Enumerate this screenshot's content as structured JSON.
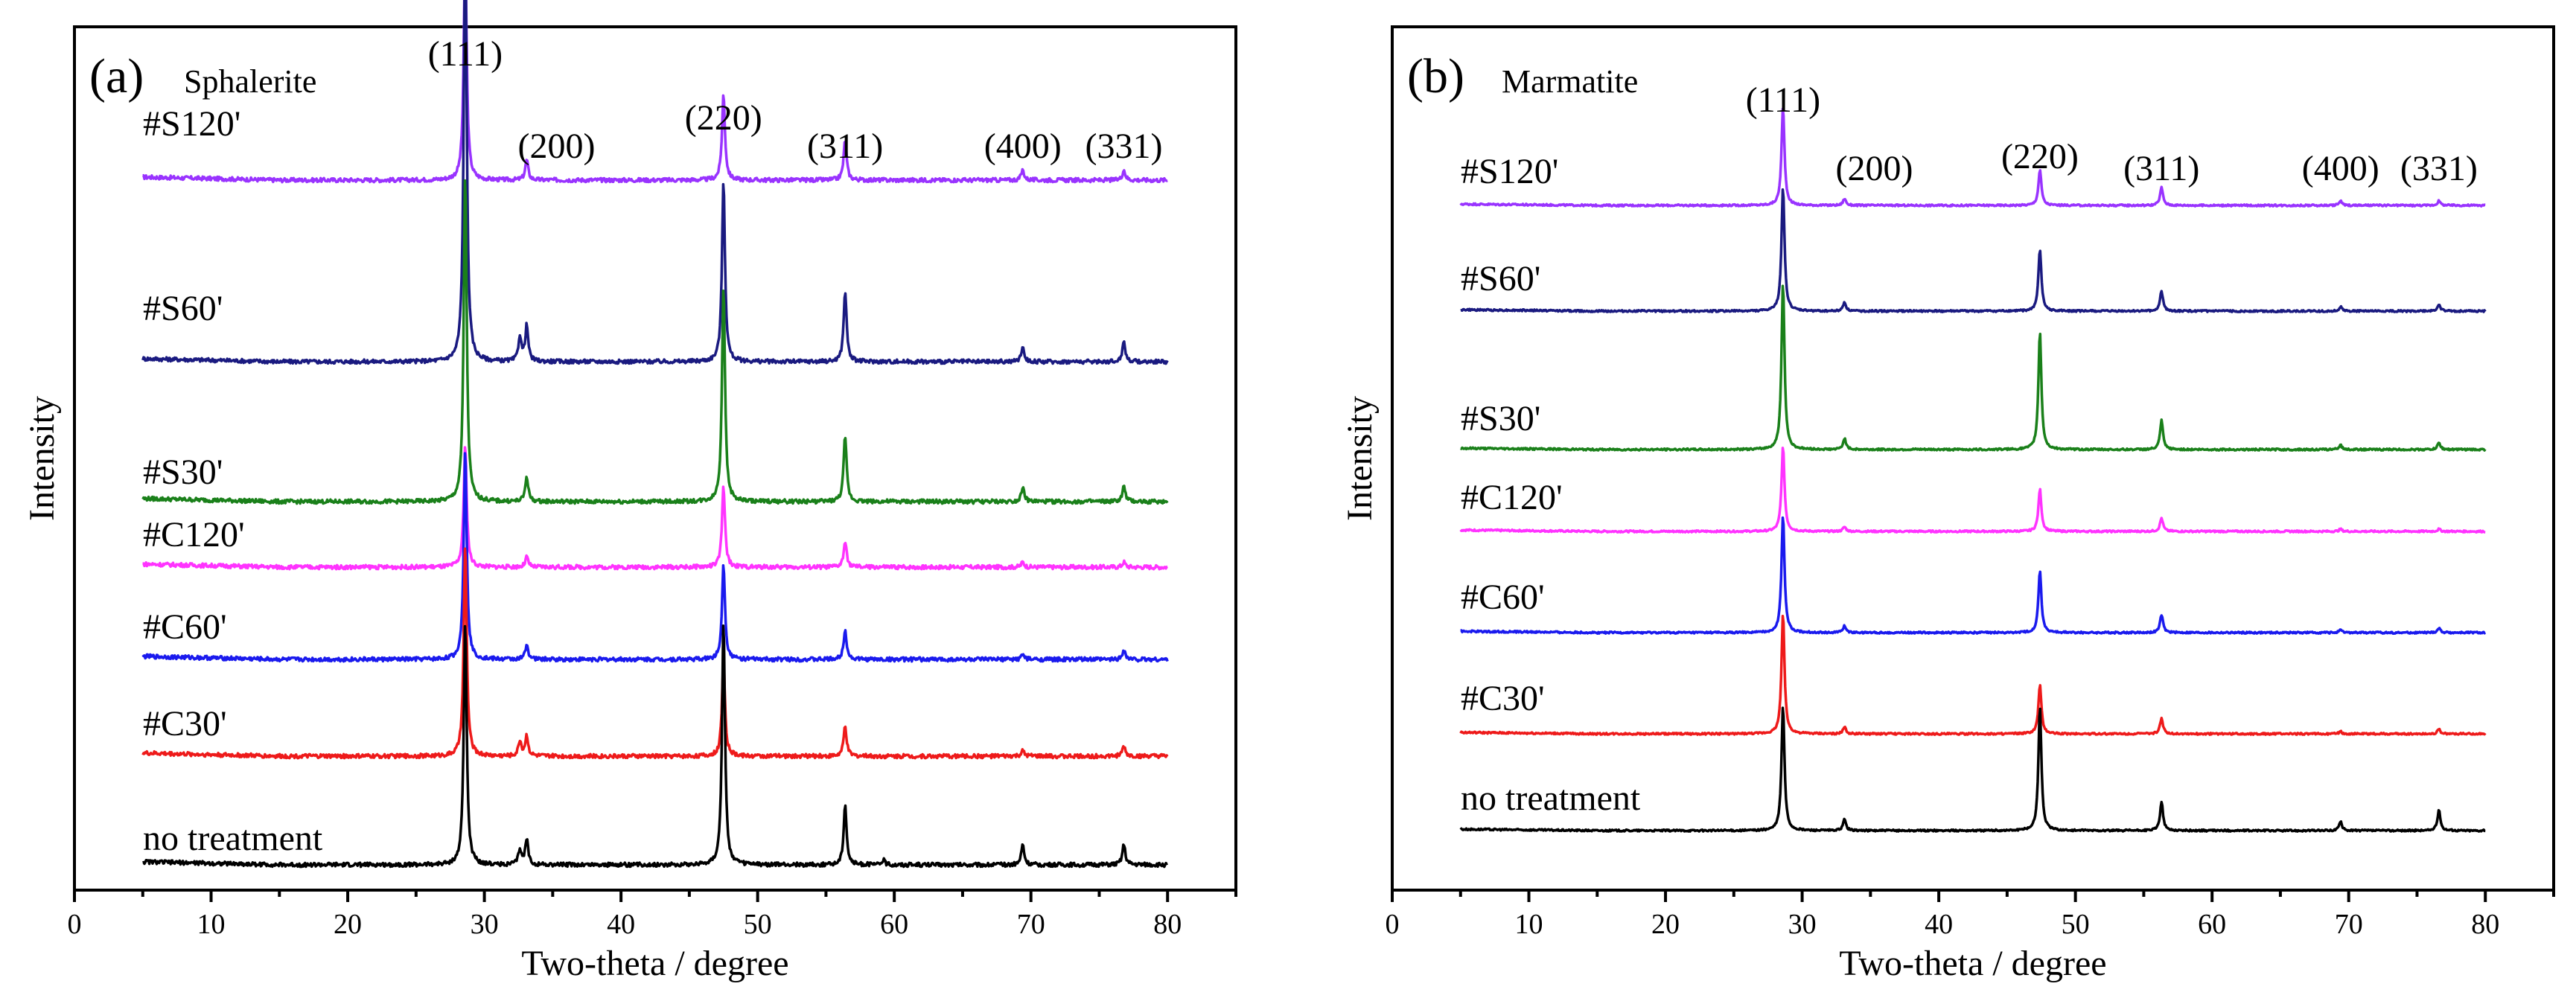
{
  "chart_data": [
    {
      "type": "line",
      "panel_label": "(a)",
      "title": "Sphalerite",
      "xlabel": "Two-theta / degree",
      "ylabel": "Intensity",
      "xlim": [
        0,
        85
      ],
      "xticks": [
        0,
        10,
        20,
        30,
        40,
        50,
        60,
        70,
        80
      ],
      "x_range_measured": [
        5,
        80
      ],
      "peak_labels": [
        {
          "text": "(111)",
          "x": 28.6
        },
        {
          "text": "(200)",
          "x": 33.1
        },
        {
          "text": "(220)",
          "x": 47.5
        },
        {
          "text": "(311)",
          "x": 56.4
        },
        {
          "text": "(400)",
          "x": 69.4
        },
        {
          "text": "(331)",
          "x": 76.8
        }
      ],
      "series": [
        {
          "name": "#S120'",
          "color": "#9933ff",
          "peaks": [
            [
              28.6,
              0.45
            ],
            [
              33.1,
              0.04
            ],
            [
              47.5,
              0.17
            ],
            [
              56.4,
              0.08
            ],
            [
              69.4,
              0.02
            ],
            [
              76.8,
              0.02
            ]
          ]
        },
        {
          "name": "#S60'",
          "color": "#1a1a80",
          "peaks": [
            [
              28.6,
              0.85
            ],
            [
              32.6,
              0.05
            ],
            [
              33.1,
              0.07
            ],
            [
              47.5,
              0.36
            ],
            [
              56.4,
              0.14
            ],
            [
              69.4,
              0.03
            ],
            [
              76.8,
              0.04
            ]
          ]
        },
        {
          "name": "#S30'",
          "color": "#1a801a",
          "peaks": [
            [
              28.6,
              0.65
            ],
            [
              33.1,
              0.05
            ],
            [
              47.5,
              0.43
            ],
            [
              56.4,
              0.13
            ],
            [
              69.4,
              0.03
            ],
            [
              76.8,
              0.03
            ]
          ]
        },
        {
          "name": "#C120'",
          "color": "#ff33ff",
          "peaks": [
            [
              28.6,
              0.24
            ],
            [
              33.1,
              0.02
            ],
            [
              47.5,
              0.16
            ],
            [
              56.4,
              0.05
            ],
            [
              69.4,
              0.01
            ],
            [
              76.8,
              0.01
            ]
          ]
        },
        {
          "name": "#C60'",
          "color": "#1a1aee",
          "peaks": [
            [
              28.6,
              0.42
            ],
            [
              33.1,
              0.03
            ],
            [
              47.5,
              0.19
            ],
            [
              56.4,
              0.06
            ],
            [
              69.4,
              0.01
            ],
            [
              76.8,
              0.02
            ]
          ]
        },
        {
          "name": "#C30'",
          "color": "#ee1a1a",
          "peaks": [
            [
              28.6,
              0.42
            ],
            [
              32.6,
              0.03
            ],
            [
              33.1,
              0.04
            ],
            [
              47.5,
              0.19
            ],
            [
              56.4,
              0.06
            ],
            [
              69.4,
              0.01
            ],
            [
              76.8,
              0.02
            ]
          ]
        },
        {
          "name": "no treatment",
          "color": "#000000",
          "peaks": [
            [
              28.6,
              0.48
            ],
            [
              32.6,
              0.03
            ],
            [
              33.1,
              0.05
            ],
            [
              47.5,
              0.48
            ],
            [
              56.4,
              0.12
            ],
            [
              59.2,
              0.01
            ],
            [
              69.4,
              0.04
            ],
            [
              76.8,
              0.04
            ]
          ]
        }
      ]
    },
    {
      "type": "line",
      "panel_label": "(b)",
      "title": "Marmatite",
      "xlabel": "Two-theta / degree",
      "ylabel": "Intensity",
      "xlim": [
        0,
        85
      ],
      "xticks": [
        0,
        10,
        20,
        30,
        40,
        50,
        60,
        70,
        80
      ],
      "x_range_measured": [
        5,
        80
      ],
      "peak_labels": [
        {
          "text": "(111)",
          "x": 28.6
        },
        {
          "text": "(200)",
          "x": 33.1
        },
        {
          "text": "(220)",
          "x": 47.4
        },
        {
          "text": "(311)",
          "x": 56.3
        },
        {
          "text": "(400)",
          "x": 69.4
        },
        {
          "text": "(331)",
          "x": 76.6
        }
      ],
      "series": [
        {
          "name": "#S120'",
          "color": "#9933ff",
          "peaks": [
            [
              28.6,
              0.44
            ],
            [
              33.1,
              0.03
            ],
            [
              47.4,
              0.16
            ],
            [
              56.3,
              0.08
            ],
            [
              69.4,
              0.02
            ],
            [
              76.6,
              0.02
            ]
          ]
        },
        {
          "name": "#S60'",
          "color": "#1a1a80",
          "peaks": [
            [
              28.6,
              0.56
            ],
            [
              33.1,
              0.04
            ],
            [
              47.4,
              0.28
            ],
            [
              56.3,
              0.09
            ],
            [
              69.4,
              0.02
            ],
            [
              76.6,
              0.03
            ]
          ]
        },
        {
          "name": "#S30'",
          "color": "#1a801a",
          "peaks": [
            [
              28.6,
              0.75
            ],
            [
              33.1,
              0.05
            ],
            [
              47.4,
              0.53
            ],
            [
              56.3,
              0.13
            ],
            [
              69.4,
              0.02
            ],
            [
              76.6,
              0.03
            ]
          ]
        },
        {
          "name": "#C120'",
          "color": "#ff33ff",
          "peaks": [
            [
              28.6,
              0.38
            ],
            [
              33.1,
              0.02
            ],
            [
              47.4,
              0.19
            ],
            [
              56.3,
              0.06
            ],
            [
              69.4,
              0.01
            ],
            [
              76.6,
              0.01
            ]
          ]
        },
        {
          "name": "#C60'",
          "color": "#1a1aee",
          "peaks": [
            [
              28.6,
              0.53
            ],
            [
              33.1,
              0.03
            ],
            [
              47.4,
              0.28
            ],
            [
              56.3,
              0.08
            ],
            [
              69.4,
              0.01
            ],
            [
              76.6,
              0.02
            ]
          ]
        },
        {
          "name": "#C30'",
          "color": "#ee1a1a",
          "peaks": [
            [
              28.6,
              0.54
            ],
            [
              33.1,
              0.03
            ],
            [
              47.4,
              0.22
            ],
            [
              56.3,
              0.07
            ],
            [
              69.4,
              0.01
            ],
            [
              76.6,
              0.02
            ]
          ]
        },
        {
          "name": "no treatment",
          "color": "#000000",
          "peaks": [
            [
              28.6,
              0.56
            ],
            [
              33.1,
              0.05
            ],
            [
              47.4,
              0.56
            ],
            [
              56.3,
              0.13
            ],
            [
              69.4,
              0.04
            ],
            [
              76.6,
              0.09
            ]
          ]
        }
      ]
    }
  ]
}
